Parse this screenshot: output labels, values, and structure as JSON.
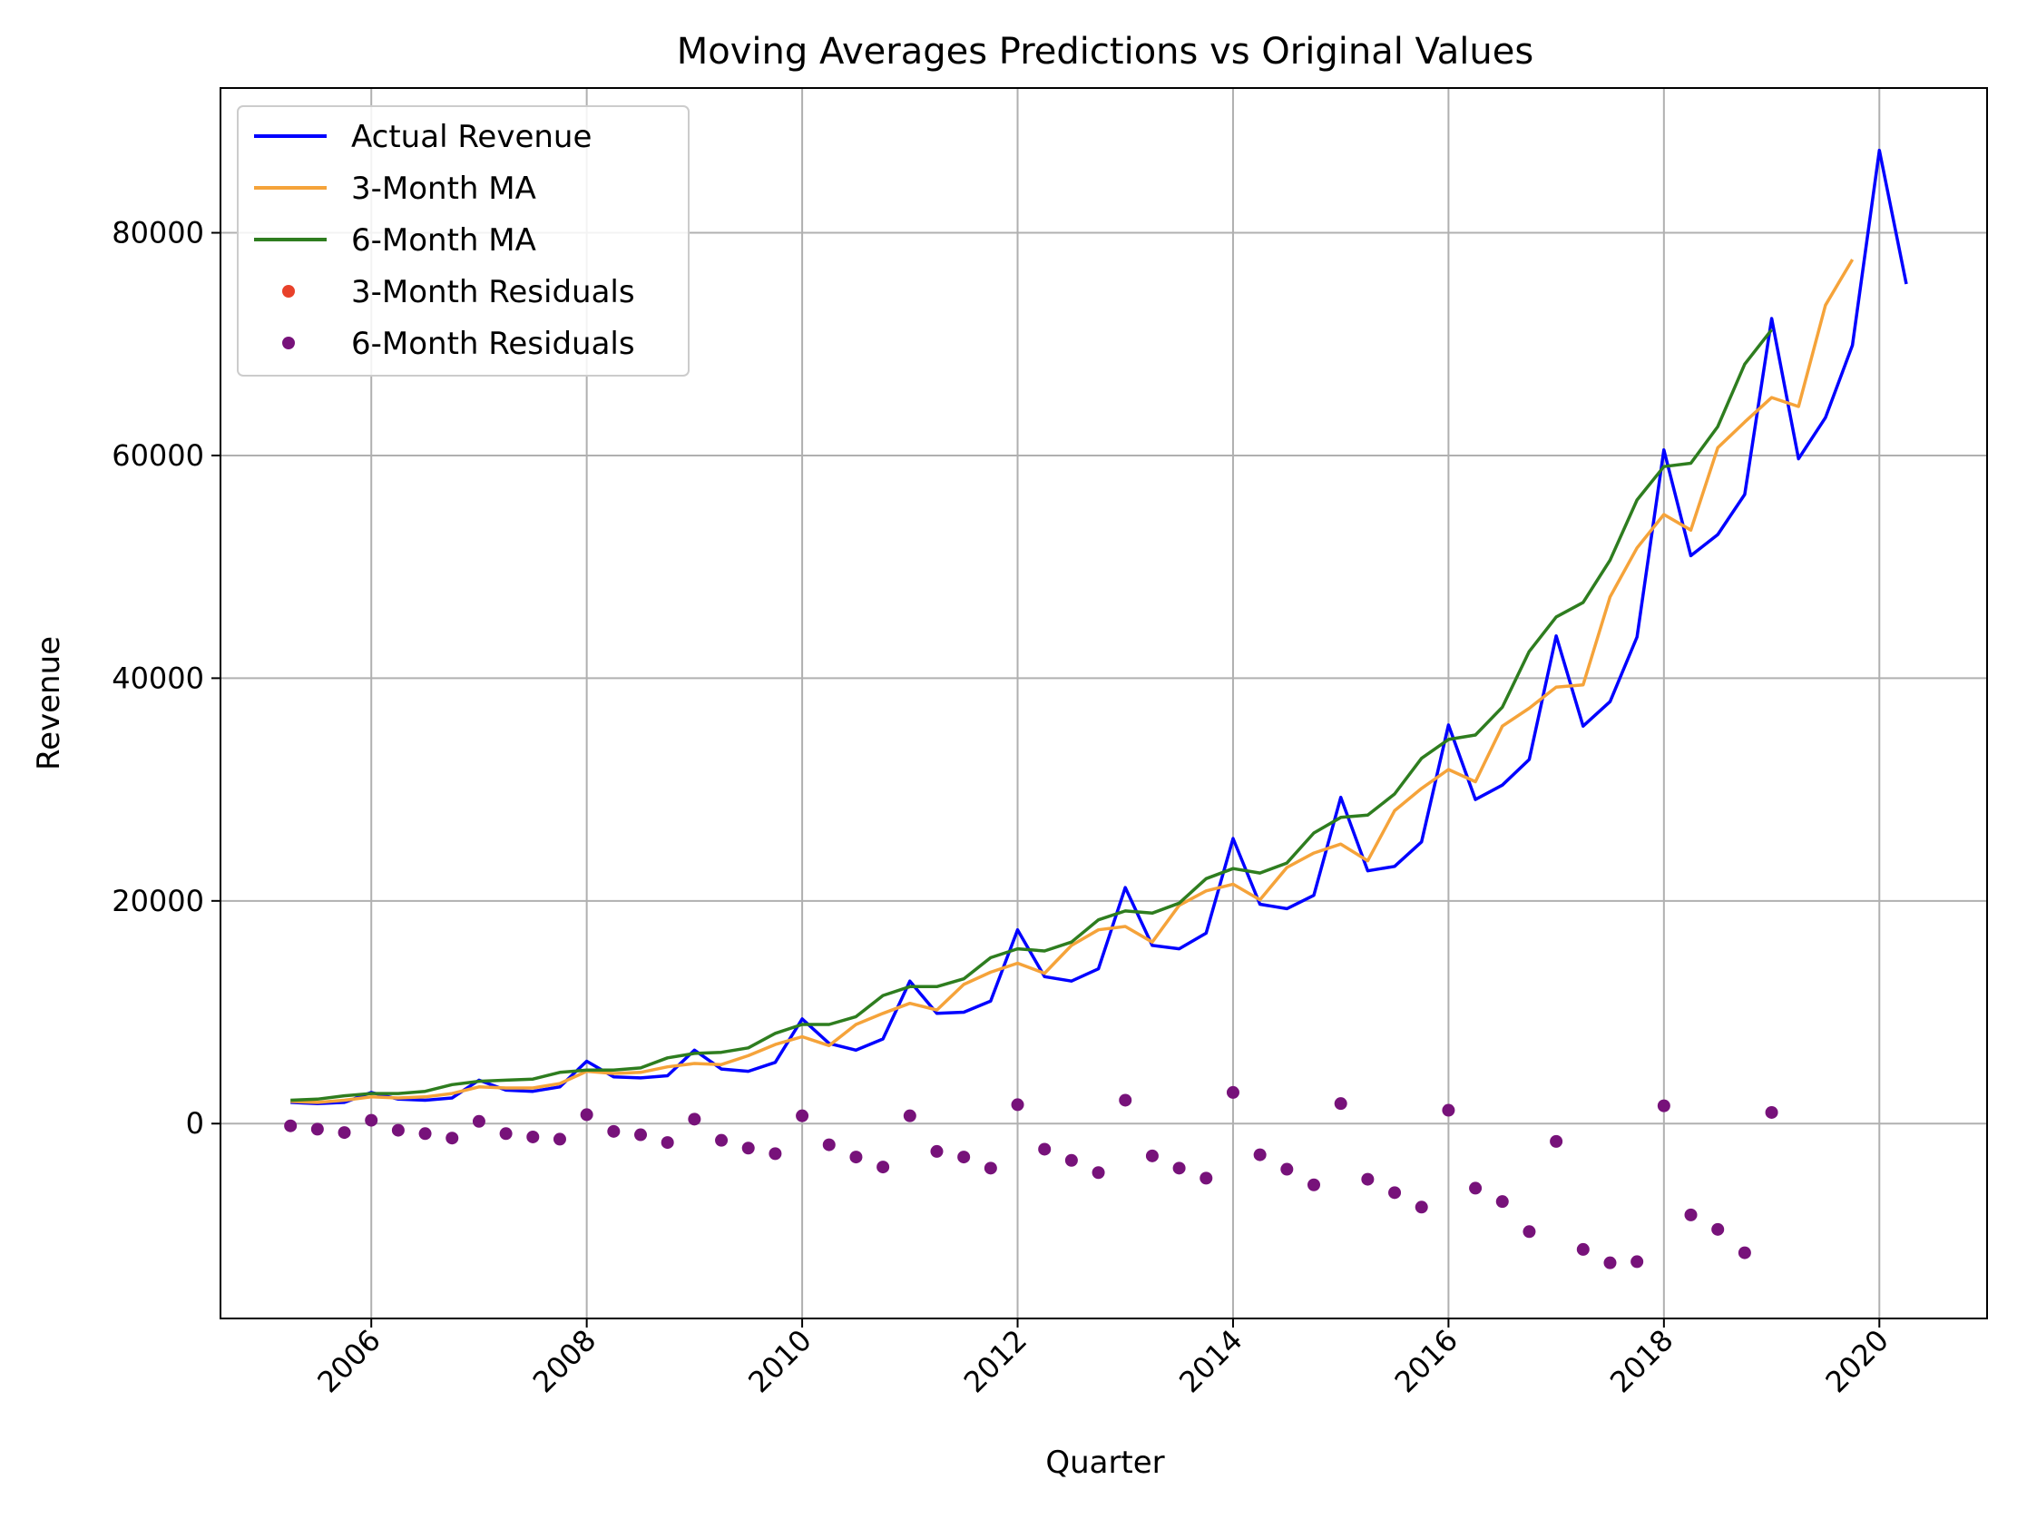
{
  "chart_data": {
    "type": "line",
    "title": "Moving Averages Predictions vs Original Values",
    "xlabel": "Quarter",
    "ylabel": "Revenue",
    "xlim": [
      2004.6,
      2021.0
    ],
    "ylim": [
      -17500,
      93000
    ],
    "x_ticks": [
      2006,
      2008,
      2010,
      2012,
      2014,
      2016,
      2018,
      2020
    ],
    "y_ticks": [
      0,
      20000,
      40000,
      60000,
      80000
    ],
    "grid": true,
    "legend_position": "top-left",
    "colors": {
      "actual": "#0000ff",
      "ma3": "#f5a33a",
      "ma6": "#2e7d1f",
      "res3": "#e8412a",
      "res6": "#77127a"
    },
    "legend": [
      {
        "label": "Actual Revenue",
        "key": "actual",
        "kind": "line"
      },
      {
        "label": "3-Month MA",
        "key": "ma3",
        "kind": "line"
      },
      {
        "label": "6-Month MA",
        "key": "ma6",
        "kind": "line"
      },
      {
        "label": "3-Month Residuals",
        "key": "res3",
        "kind": "dot"
      },
      {
        "label": "6-Month Residuals",
        "key": "res6",
        "kind": "dot"
      }
    ],
    "series": [
      {
        "name": "Actual Revenue",
        "key": "actual",
        "x_start": 2005.25,
        "step": 0.25,
        "values": [
          1900,
          1800,
          1900,
          2800,
          2200,
          2100,
          2300,
          3900,
          3000,
          2900,
          3300,
          5600,
          4200,
          4100,
          4300,
          6600,
          4900,
          4700,
          5500,
          9400,
          7200,
          6600,
          7600,
          12800,
          9900,
          10000,
          11000,
          17400,
          13200,
          12800,
          13900,
          21200,
          16000,
          15700,
          17100,
          25600,
          19700,
          19300,
          20500,
          29300,
          22700,
          23100,
          25300,
          35800,
          29100,
          30400,
          32700,
          43800,
          35700,
          37900,
          43700,
          60500,
          51000,
          52900,
          56500,
          72300,
          59700,
          63400,
          69900,
          87400,
          75400
        ]
      },
      {
        "name": "3-Month MA",
        "key": "ma3",
        "x_start": 2005.25,
        "step": 0.25,
        "values": [
          2000,
          1900,
          2100,
          2400,
          2300,
          2400,
          2700,
          3300,
          3200,
          3200,
          3600,
          4700,
          4500,
          4600,
          5100,
          5400,
          5300,
          6100,
          7100,
          7800,
          7000,
          8900,
          9900,
          10800,
          10200,
          12500,
          13600,
          14400,
          13500,
          16000,
          17400,
          17700,
          16300,
          19600,
          20900,
          21500,
          20100,
          23000,
          24300,
          25100,
          23600,
          28100,
          30100,
          31800,
          30700,
          35700,
          37300,
          39200,
          39400,
          47300,
          51700,
          54700,
          53300,
          60700,
          63000,
          65200,
          64400,
          73500,
          77600
        ]
      },
      {
        "name": "6-Month MA",
        "key": "ma6",
        "x_start": 2005.25,
        "step": 0.25,
        "values": [
          2100,
          2200,
          2500,
          2700,
          2700,
          2900,
          3500,
          3800,
          3900,
          4000,
          4600,
          4800,
          4800,
          5000,
          5900,
          6300,
          6400,
          6800,
          8100,
          8900,
          8900,
          9600,
          11500,
          12300,
          12300,
          13000,
          14900,
          15700,
          15500,
          16300,
          18300,
          19100,
          18900,
          19800,
          22000,
          22900,
          22500,
          23400,
          26100,
          27500,
          27700,
          29600,
          32800,
          34500,
          34900,
          37400,
          42400,
          45500,
          46800,
          50600,
          56000,
          59000,
          59300,
          62600,
          68200,
          71300
        ]
      }
    ],
    "residuals": {
      "name": "6-Month Residuals",
      "key": "res6",
      "x_start": 2005.25,
      "step": 0.25,
      "values": [
        -200,
        -500,
        -800,
        300,
        -600,
        -900,
        -1300,
        200,
        -900,
        -1200,
        -1400,
        800,
        -700,
        -1000,
        -1700,
        400,
        -1500,
        -2200,
        -2700,
        700,
        -1900,
        -3000,
        -3900,
        700,
        -2500,
        -3000,
        -4000,
        1700,
        -2300,
        -3300,
        -4400,
        2100,
        -2900,
        -4000,
        -4900,
        2800,
        -2800,
        -4100,
        -5500,
        1800,
        -5000,
        -6200,
        -7500,
        1200,
        -5800,
        -7000,
        -9700,
        -1600,
        -11300,
        -12500,
        -12400,
        1600,
        -8200,
        -9500,
        -11600,
        1000
      ]
    }
  }
}
